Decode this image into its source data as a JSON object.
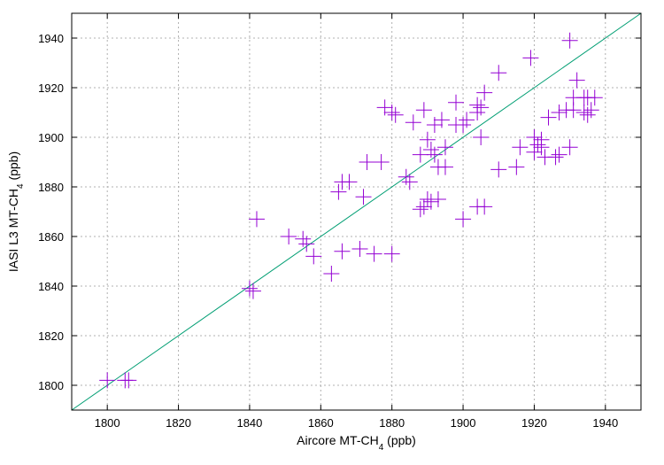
{
  "chart_data": {
    "type": "scatter",
    "title": "",
    "xlabel": {
      "main": "Aircore MT-CH",
      "sub": "4",
      "unit": " (ppb)"
    },
    "ylabel": {
      "main": "IASI L3 MT-CH",
      "sub": "4",
      "unit": " (ppb)"
    },
    "xlim": [
      1790,
      1950
    ],
    "ylim": [
      1790,
      1950
    ],
    "xticks": [
      1800,
      1820,
      1840,
      1860,
      1880,
      1900,
      1920,
      1940
    ],
    "yticks": [
      1800,
      1820,
      1840,
      1860,
      1880,
      1900,
      1920,
      1940
    ],
    "grid": true,
    "legend": "none",
    "point_color": "#9400d3",
    "line_color": "#009e73",
    "reference_line": {
      "type": "1:1",
      "x": [
        1790,
        1950
      ],
      "y": [
        1790,
        1950
      ]
    },
    "points": [
      {
        "x": 1800,
        "y": 1802
      },
      {
        "x": 1805,
        "y": 1802
      },
      {
        "x": 1806,
        "y": 1802
      },
      {
        "x": 1840,
        "y": 1839
      },
      {
        "x": 1841,
        "y": 1838
      },
      {
        "x": 1842,
        "y": 1867
      },
      {
        "x": 1851,
        "y": 1860
      },
      {
        "x": 1855,
        "y": 1859
      },
      {
        "x": 1856,
        "y": 1857
      },
      {
        "x": 1858,
        "y": 1852
      },
      {
        "x": 1863,
        "y": 1845
      },
      {
        "x": 1865,
        "y": 1878
      },
      {
        "x": 1866,
        "y": 1854
      },
      {
        "x": 1866,
        "y": 1882
      },
      {
        "x": 1868,
        "y": 1882
      },
      {
        "x": 1871,
        "y": 1855
      },
      {
        "x": 1872,
        "y": 1876
      },
      {
        "x": 1873,
        "y": 1890
      },
      {
        "x": 1875,
        "y": 1853
      },
      {
        "x": 1877,
        "y": 1890
      },
      {
        "x": 1878,
        "y": 1912
      },
      {
        "x": 1880,
        "y": 1853
      },
      {
        "x": 1880,
        "y": 1910
      },
      {
        "x": 1881,
        "y": 1909
      },
      {
        "x": 1884,
        "y": 1884
      },
      {
        "x": 1885,
        "y": 1882
      },
      {
        "x": 1886,
        "y": 1906
      },
      {
        "x": 1888,
        "y": 1893
      },
      {
        "x": 1888,
        "y": 1871
      },
      {
        "x": 1889,
        "y": 1872
      },
      {
        "x": 1889,
        "y": 1911
      },
      {
        "x": 1890,
        "y": 1899
      },
      {
        "x": 1890,
        "y": 1875
      },
      {
        "x": 1891,
        "y": 1895
      },
      {
        "x": 1891,
        "y": 1874
      },
      {
        "x": 1892,
        "y": 1905
      },
      {
        "x": 1892,
        "y": 1893
      },
      {
        "x": 1893,
        "y": 1888
      },
      {
        "x": 1893,
        "y": 1875
      },
      {
        "x": 1894,
        "y": 1907
      },
      {
        "x": 1895,
        "y": 1896
      },
      {
        "x": 1895,
        "y": 1888
      },
      {
        "x": 1898,
        "y": 1905
      },
      {
        "x": 1898,
        "y": 1914
      },
      {
        "x": 1900,
        "y": 1867
      },
      {
        "x": 1900,
        "y": 1905
      },
      {
        "x": 1901,
        "y": 1907
      },
      {
        "x": 1904,
        "y": 1913
      },
      {
        "x": 1904,
        "y": 1910
      },
      {
        "x": 1904,
        "y": 1872
      },
      {
        "x": 1905,
        "y": 1912
      },
      {
        "x": 1905,
        "y": 1900
      },
      {
        "x": 1906,
        "y": 1872
      },
      {
        "x": 1906,
        "y": 1918
      },
      {
        "x": 1910,
        "y": 1926
      },
      {
        "x": 1910,
        "y": 1887
      },
      {
        "x": 1915,
        "y": 1888
      },
      {
        "x": 1916,
        "y": 1896
      },
      {
        "x": 1919,
        "y": 1932
      },
      {
        "x": 1920,
        "y": 1900
      },
      {
        "x": 1920,
        "y": 1894
      },
      {
        "x": 1921,
        "y": 1897
      },
      {
        "x": 1922,
        "y": 1899
      },
      {
        "x": 1922,
        "y": 1896
      },
      {
        "x": 1923,
        "y": 1892
      },
      {
        "x": 1924,
        "y": 1908
      },
      {
        "x": 1926,
        "y": 1892
      },
      {
        "x": 1927,
        "y": 1893
      },
      {
        "x": 1927,
        "y": 1910
      },
      {
        "x": 1929,
        "y": 1911
      },
      {
        "x": 1930,
        "y": 1896
      },
      {
        "x": 1930,
        "y": 1939
      },
      {
        "x": 1931,
        "y": 1916
      },
      {
        "x": 1931,
        "y": 1911
      },
      {
        "x": 1932,
        "y": 1923
      },
      {
        "x": 1934,
        "y": 1910
      },
      {
        "x": 1934,
        "y": 1916
      },
      {
        "x": 1935,
        "y": 1909
      },
      {
        "x": 1935,
        "y": 1916
      },
      {
        "x": 1936,
        "y": 1911
      },
      {
        "x": 1937,
        "y": 1916
      }
    ]
  }
}
